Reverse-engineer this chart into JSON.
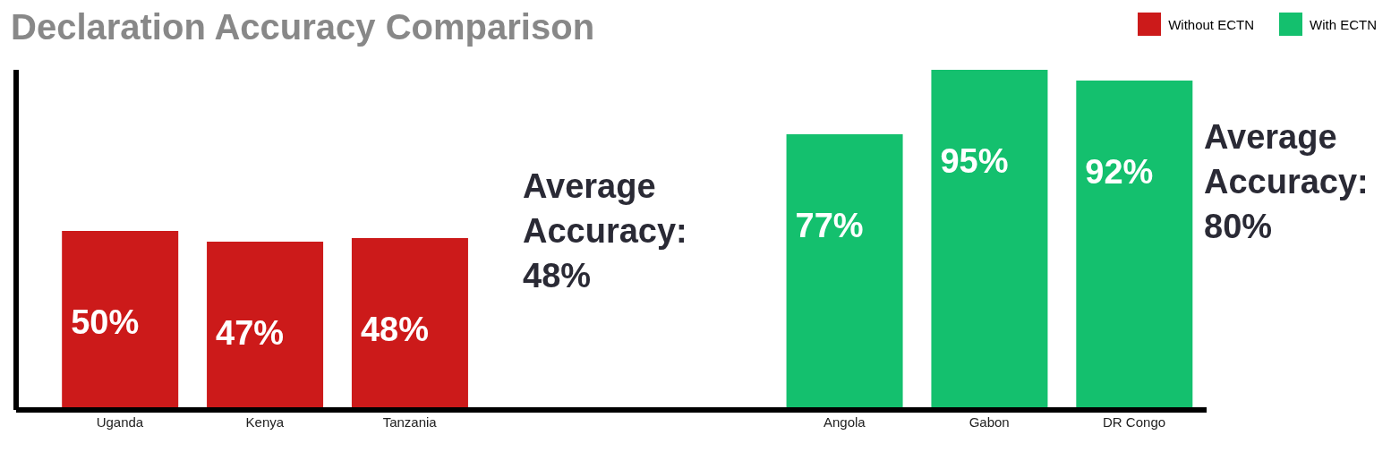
{
  "chart_data": {
    "type": "bar",
    "title": "Declaration Accuracy Comparison",
    "categories": [
      "Uganda",
      "Kenya",
      "Tanzania",
      null,
      null,
      "Angola",
      "Gabon",
      "DR Congo"
    ],
    "series": [
      {
        "name": "Without ECTN",
        "color": "#cc1a1a",
        "values": [
          50,
          47,
          48,
          null,
          null,
          null,
          null,
          null
        ],
        "value_labels": [
          "50%",
          "47%",
          "48%",
          null,
          null,
          null,
          null,
          null
        ]
      },
      {
        "name": "With ECTN",
        "color": "#14c06e",
        "values": [
          null,
          null,
          null,
          null,
          null,
          77,
          95,
          92
        ],
        "value_labels": [
          null,
          null,
          null,
          null,
          null,
          "77%",
          "95%",
          "92%"
        ]
      }
    ],
    "tick_labels": "x",
    "grid": false,
    "legend": "top right",
    "annotations": [
      "Average Accuracy: 48%",
      "Average Accuracy: 80%"
    ]
  }
}
